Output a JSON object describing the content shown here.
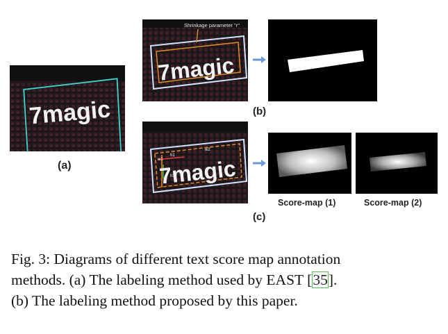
{
  "figure": {
    "panel_a": {
      "logo_text": "7magic",
      "label": "(a)"
    },
    "panel_b": {
      "annotation": "Shrinkage parameter \"r\"",
      "logo_text": "7magic",
      "label": "(b)"
    },
    "panel_c": {
      "logo_text": "7magic",
      "marks": [
        "h1",
        "w1",
        "w2",
        "h2"
      ],
      "label": "(c)",
      "score_map_1": "Score-map (1)",
      "score_map_2": "Score-map (2)"
    }
  },
  "caption": {
    "line1": "Fig. 3: Diagrams of different text score map annotation",
    "line2_before": "methods. (a) The labeling method used by EAST [",
    "line2_cite": "35",
    "line2_after": "].",
    "line3": "(b) The labeling method proposed by this paper."
  },
  "colors": {
    "box_cyan": "#3fd0d0",
    "box_white": "#cfe3ff",
    "box_orange": "#e08a2a",
    "arrow": "#6a9bd8"
  }
}
